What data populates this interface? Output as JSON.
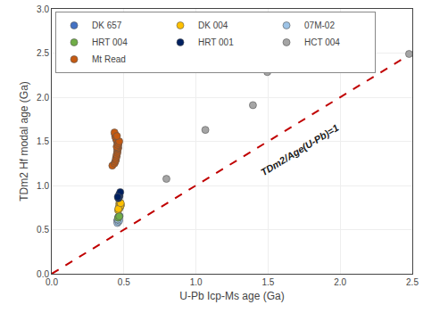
{
  "chart_data": {
    "type": "scatter",
    "xlabel": "U-Pb Icp-Ms age (Ga)",
    "ylabel": "TDm2 Hf modal age (Ga)",
    "xlim": [
      0.0,
      2.5
    ],
    "ylim": [
      0.0,
      3.0
    ],
    "xticks": [
      {
        "value": 0.0,
        "label": "0.0"
      },
      {
        "value": 0.5,
        "label": "0.5"
      },
      {
        "value": 1.0,
        "label": "1.0"
      },
      {
        "value": 1.5,
        "label": "1.5"
      },
      {
        "value": 2.0,
        "label": "2.0"
      },
      {
        "value": 2.5,
        "label": "2.5"
      }
    ],
    "yticks": [
      {
        "value": 0.0,
        "label": "0.0"
      },
      {
        "value": 0.5,
        "label": "0.5"
      },
      {
        "value": 1.0,
        "label": "1.0"
      },
      {
        "value": 1.5,
        "label": "1.5"
      },
      {
        "value": 2.0,
        "label": "2.0"
      },
      {
        "value": 2.5,
        "label": "2.5"
      },
      {
        "value": 3.0,
        "label": "3.0"
      }
    ],
    "grid": true,
    "legend": "upper left",
    "marker": "circle",
    "annotations": [
      {
        "text": "TDm2/Age(U-Pb)=1",
        "x": 1.72,
        "y": 1.4
      }
    ],
    "series": [
      {
        "type": "line",
        "line_style": "dashed",
        "color": "#c00000",
        "x": [
          0.0,
          2.5
        ],
        "values": [
          0.0,
          2.5
        ]
      },
      {
        "name": "DK 657",
        "color": "#4472c4",
        "x": [
          0.455,
          0.46,
          0.465,
          0.47,
          0.458,
          0.462
        ],
        "values": [
          0.6,
          0.62,
          0.635,
          0.655,
          0.61,
          0.645
        ]
      },
      {
        "name": "DK 004",
        "color": "#ffc000",
        "x": [
          0.46,
          0.47,
          0.475,
          0.48,
          0.468,
          0.472,
          0.465,
          0.476,
          0.462,
          0.478
        ],
        "values": [
          0.72,
          0.74,
          0.76,
          0.78,
          0.795,
          0.81,
          0.755,
          0.77,
          0.735,
          0.8
        ]
      },
      {
        "name": "07M-02",
        "color": "#9dc3e6",
        "x": [
          0.455,
          0.462,
          0.468,
          0.458
        ],
        "values": [
          0.575,
          0.59,
          0.605,
          0.615
        ]
      },
      {
        "name": "HRT 004",
        "color": "#70ad47",
        "x": [
          0.46,
          0.468
        ],
        "values": [
          0.635,
          0.65
        ]
      },
      {
        "name": "HRT 001",
        "color": "#002060",
        "x": [
          0.462,
          0.47,
          0.468,
          0.475,
          0.458
        ],
        "values": [
          0.855,
          0.88,
          0.9,
          0.925,
          0.87
        ]
      },
      {
        "name": "HCT 004",
        "color": "#a5a5a5",
        "x": [
          0.795,
          1.065,
          1.395,
          1.495,
          2.478
        ],
        "values": [
          1.075,
          1.63,
          1.91,
          2.285,
          2.49
        ]
      },
      {
        "name": "Mt Read",
        "color": "#c55a11",
        "x": [
          0.42,
          0.435,
          0.44,
          0.445,
          0.445,
          0.45,
          0.45,
          0.455,
          0.455,
          0.455,
          0.46,
          0.46,
          0.46,
          0.46,
          0.455,
          0.45,
          0.445,
          0.44,
          0.438,
          0.435,
          0.45,
          0.458,
          0.463,
          0.468,
          0.452
        ],
        "values": [
          1.225,
          1.25,
          1.27,
          1.29,
          1.31,
          1.33,
          1.35,
          1.37,
          1.39,
          1.41,
          1.42,
          1.43,
          1.45,
          1.47,
          1.49,
          1.51,
          1.53,
          1.555,
          1.58,
          1.6,
          1.44,
          1.46,
          1.48,
          1.5,
          1.56
        ]
      }
    ]
  }
}
